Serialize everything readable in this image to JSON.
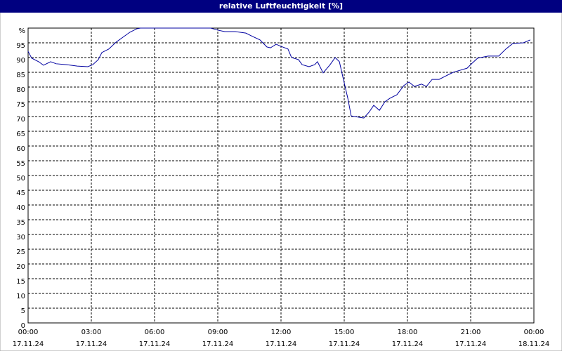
{
  "chart_data": {
    "type": "line",
    "title": "relative Luftfeuchtigkeit [%]",
    "x": [
      0,
      0.17,
      0.5,
      0.73,
      1.07,
      1.33,
      1.83,
      2.33,
      2.83,
      3.07,
      3.33,
      3.5,
      3.83,
      4.17,
      4.5,
      4.83,
      5.17,
      5.33,
      8.67,
      9,
      9.33,
      9.83,
      10.33,
      10.67,
      11,
      11.33,
      11.5,
      11.77,
      12,
      12.33,
      12.5,
      12.83,
      13,
      13.33,
      13.6,
      13.73,
      14,
      14.33,
      14.57,
      14.77,
      15,
      15.17,
      15.33,
      15.67,
      15.93,
      16.17,
      16.4,
      16.67,
      16.93,
      17.17,
      17.5,
      17.83,
      18.07,
      18.33,
      18.67,
      18.9,
      19.17,
      19.5,
      19.83,
      20.17,
      20.5,
      20.83,
      21.07,
      21.33,
      21.83,
      22.33,
      22.67,
      23,
      23.5,
      23.83
    ],
    "series": [
      {
        "color": "#0000a0",
        "values": [
          92.1,
          89.8,
          88.6,
          87.4,
          88.6,
          87.9,
          87.6,
          87.1,
          86.9,
          87.6,
          89.3,
          91.7,
          92.9,
          95.2,
          96.9,
          98.6,
          99.8,
          100,
          100,
          99.3,
          98.8,
          98.8,
          98.3,
          97.1,
          96,
          93.6,
          93.3,
          94.5,
          93.8,
          92.9,
          90,
          89.3,
          87.6,
          86.9,
          87.6,
          88.6,
          84.8,
          87.6,
          90,
          88.6,
          81.4,
          76.2,
          70.2,
          69.8,
          69.5,
          71.4,
          73.8,
          72.1,
          75,
          76.2,
          77.4,
          80.5,
          81.7,
          80.2,
          81,
          80.2,
          82.6,
          82.6,
          83.8,
          85,
          85.7,
          86.4,
          88.1,
          89.8,
          90.5,
          90.5,
          92.9,
          94.8,
          95,
          96
        ]
      }
    ],
    "xlim": [
      0,
      24
    ],
    "xticks": [
      {
        "value": 0,
        "label": "00:00"
      },
      {
        "value": 3,
        "label": "03:00"
      },
      {
        "value": 6,
        "label": "06:00"
      },
      {
        "value": 9,
        "label": "09:00"
      },
      {
        "value": 12,
        "label": "12:00"
      },
      {
        "value": 15,
        "label": "15:00"
      },
      {
        "value": 18,
        "label": "18:00"
      },
      {
        "value": 21,
        "label": "21:00"
      },
      {
        "value": 24,
        "label": "00:00"
      }
    ],
    "xtick_dates": [
      "17.11.24",
      "17.11.24",
      "17.11.24",
      "17.11.24",
      "17.11.24",
      "17.11.24",
      "17.11.24",
      "17.11.24",
      "18.11.24"
    ],
    "ylim": [
      0,
      100
    ],
    "yticks": [
      0,
      5,
      10,
      15,
      20,
      25,
      30,
      35,
      40,
      45,
      50,
      55,
      60,
      65,
      70,
      75,
      80,
      85,
      90,
      95,
      {
        "value": 100,
        "label": "%"
      }
    ],
    "grid": true
  }
}
